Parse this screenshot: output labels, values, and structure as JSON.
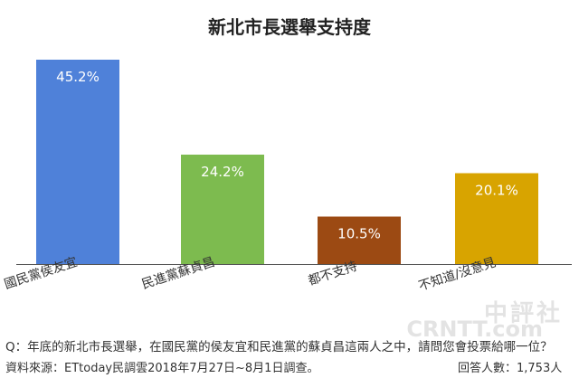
{
  "chart_data": {
    "type": "bar",
    "title": "新北市長選舉支持度",
    "categories": [
      "國民黨侯友宜",
      "民進黨蘇貞昌",
      "都不支持",
      "不知道/沒意見"
    ],
    "values": [
      45.2,
      24.2,
      10.5,
      20.1
    ],
    "data_labels": [
      "45.2%",
      "24.2%",
      "10.5%",
      "20.1%"
    ],
    "colors": [
      "#4f81d9",
      "#7dbb4f",
      "#9c4a13",
      "#d8a400"
    ],
    "ylim": [
      0,
      50
    ],
    "grid": false
  },
  "footer": {
    "question": "Q：年底的新北市長選舉，在國民黨的侯友宜和民進黨的蘇貞昌這兩人之中，請問您會投票給哪一位？",
    "source": "資料來源：ETtoday民調雲2018年7月27日~8月1日調查。",
    "respondents": "回答人數：1,753人"
  },
  "watermark": {
    "line1": "中評社",
    "line2": "CRNTT.com"
  }
}
